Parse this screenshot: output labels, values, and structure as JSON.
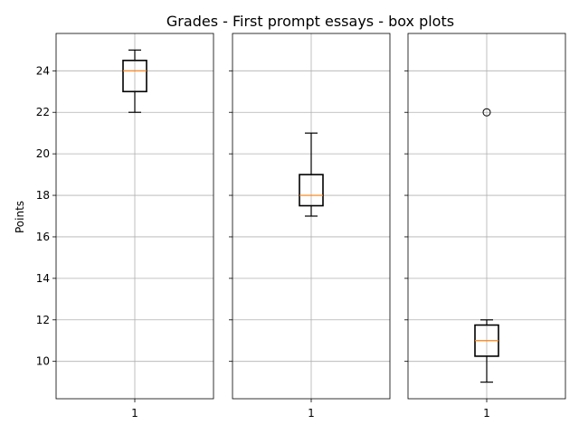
{
  "chart_data": {
    "type": "box",
    "title": "Grades - First prompt essays - box plots",
    "ylabel": "Points",
    "ylim": [
      8.2,
      25.8
    ],
    "yticks": [
      10,
      12,
      14,
      16,
      18,
      20,
      22,
      24
    ],
    "shared_y": true,
    "grid": true,
    "colors": {
      "box": "#000000",
      "median": "#ff7f0e",
      "grid": "#b0b0b0"
    },
    "panels": [
      {
        "xtick": "1",
        "whisker_low": 22,
        "q1": 23,
        "median": 24,
        "q3": 24.5,
        "whisker_high": 25,
        "outliers": []
      },
      {
        "xtick": "1",
        "whisker_low": 17,
        "q1": 17.5,
        "median": 18,
        "q3": 19,
        "whisker_high": 21,
        "outliers": []
      },
      {
        "xtick": "1",
        "whisker_low": 9,
        "q1": 10.25,
        "median": 11,
        "q3": 11.75,
        "whisker_high": 12,
        "outliers": [
          22
        ]
      }
    ]
  }
}
